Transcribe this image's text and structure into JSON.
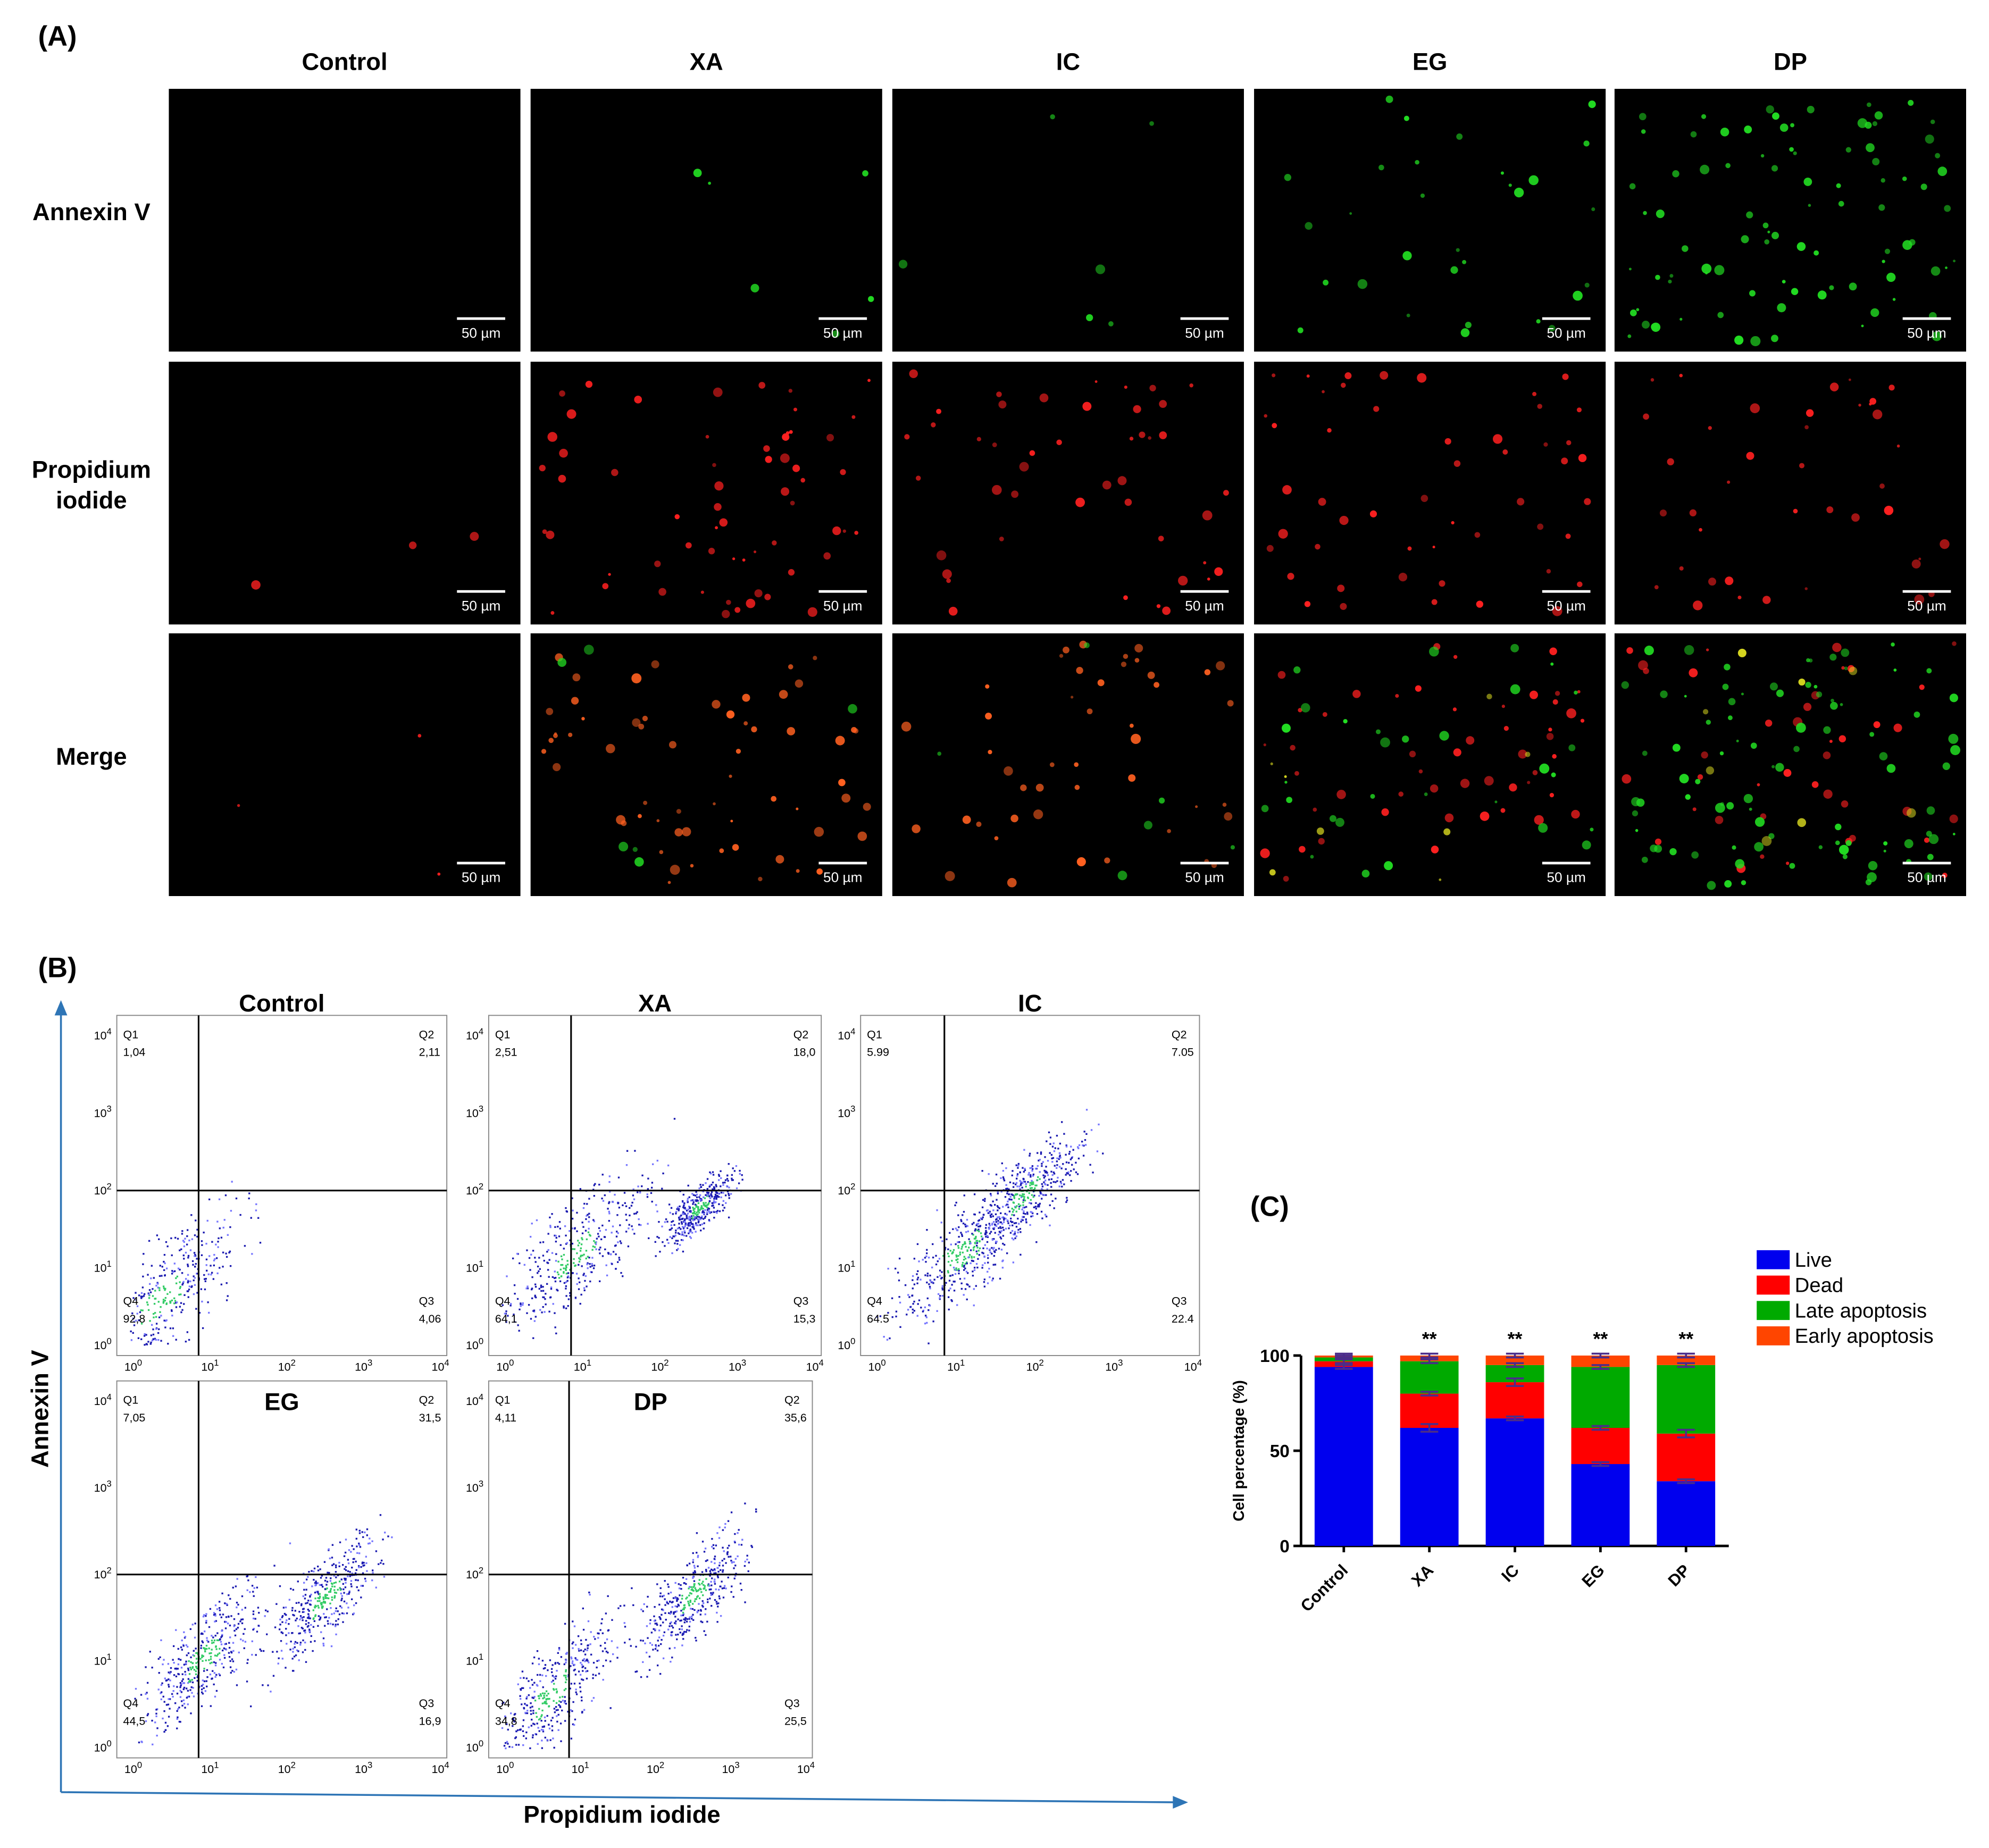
{
  "panel_a": {
    "label": "(A)",
    "columns": [
      "Control",
      "XA",
      "IC",
      "EG",
      "DP"
    ],
    "rows": [
      [
        "Annexin V"
      ],
      [
        "Propidium",
        "iodide"
      ],
      [
        "Merge"
      ]
    ],
    "scale_bar": "50 µm"
  },
  "panel_b": {
    "label": "(B)",
    "y_axis_label": "Annexin V",
    "x_axis_label": "Propidium iodide",
    "tick_base": "10",
    "tick_exponents": [
      "0",
      "1",
      "2",
      "3",
      "4"
    ],
    "plots": [
      {
        "title": "Control",
        "quadrants": [
          {
            "name": "Q1",
            "value": "1,04"
          },
          {
            "name": "Q2",
            "value": "2,11"
          },
          {
            "name": "Q3",
            "value": "4,06"
          },
          {
            "name": "Q4",
            "value": "92,8"
          }
        ]
      },
      {
        "title": "XA",
        "quadrants": [
          {
            "name": "Q1",
            "value": "2,51"
          },
          {
            "name": "Q2",
            "value": "18,0"
          },
          {
            "name": "Q3",
            "value": "15,3"
          },
          {
            "name": "Q4",
            "value": "64,1"
          }
        ]
      },
      {
        "title": "IC",
        "quadrants": [
          {
            "name": "Q1",
            "value": "5.99"
          },
          {
            "name": "Q2",
            "value": "7.05"
          },
          {
            "name": "Q3",
            "value": "22.4"
          },
          {
            "name": "Q4",
            "value": "64.5"
          }
        ]
      },
      {
        "title": "EG",
        "quadrants": [
          {
            "name": "Q1",
            "value": "7,05"
          },
          {
            "name": "Q2",
            "value": "31,5"
          },
          {
            "name": "Q3",
            "value": "16,9"
          },
          {
            "name": "Q4",
            "value": "44,5"
          }
        ]
      },
      {
        "title": "DP",
        "quadrants": [
          {
            "name": "Q1",
            "value": "4,11"
          },
          {
            "name": "Q2",
            "value": "35,6"
          },
          {
            "name": "Q3",
            "value": "25,5"
          },
          {
            "name": "Q4",
            "value": "34,8"
          }
        ]
      }
    ]
  },
  "chart_data": {
    "type": "bar",
    "stacked": true,
    "label": "(C)",
    "ylabel": "Cell percentage (%)",
    "categories": [
      "Control",
      "XA",
      "IC",
      "EG",
      "DP"
    ],
    "series": [
      {
        "name": "Live",
        "color": "#0000ee",
        "values": [
          94,
          62,
          67,
          43,
          34
        ],
        "errors": [
          1,
          2,
          1,
          1,
          1
        ]
      },
      {
        "name": "Dead",
        "color": "#ff0000",
        "values": [
          3,
          18,
          19,
          19,
          25
        ],
        "errors": [
          1,
          1,
          2,
          1,
          2
        ]
      },
      {
        "name": "Late apoptosis",
        "color": "#00aa00",
        "values": [
          2,
          17,
          9,
          32,
          36
        ],
        "errors": [
          1,
          1,
          1,
          1,
          1
        ]
      },
      {
        "name": "Early apoptosis",
        "color": "#ff4500",
        "values": [
          1,
          3,
          5,
          6,
          5
        ],
        "errors": [
          1,
          1,
          1,
          1,
          1
        ]
      }
    ],
    "annotations": [
      null,
      "**",
      "**",
      "**",
      "**"
    ],
    "ylim": [
      0,
      100
    ],
    "yticks": [
      0,
      50,
      100
    ],
    "legend": "right"
  }
}
